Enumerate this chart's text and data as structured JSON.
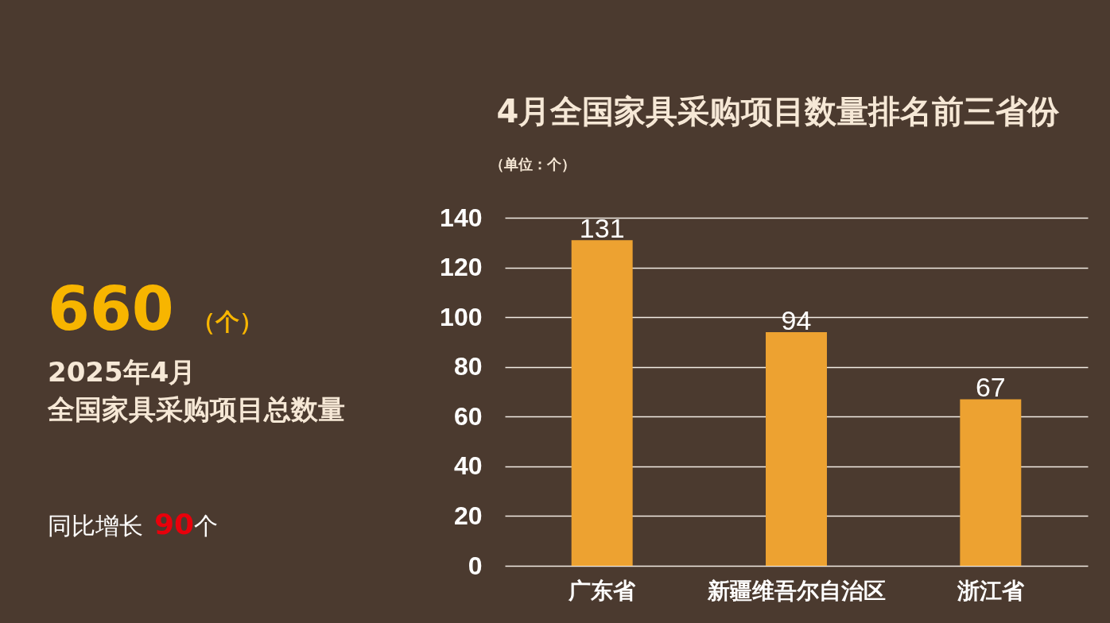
{
  "chart_data": [
    {
      "type": "other",
      "annotations": [
        "660",
        "（个）",
        "2025年4月",
        "全国家具采购项目总数量",
        "同比增长",
        "90",
        "个"
      ]
    },
    {
      "type": "bar",
      "title": "4月全国家具采购项目数量排名前三省份",
      "ylabel": "（单位：个）",
      "categories": [
        "广东省",
        "新疆维吾尔自治区",
        "浙江省"
      ],
      "values": [
        131,
        94,
        67
      ],
      "color": "#eda231",
      "ylim": [
        0,
        140
      ],
      "yticks": [
        0,
        20,
        40,
        60,
        80,
        100,
        120,
        140
      ],
      "grid": "y",
      "data_labels": true
    }
  ]
}
